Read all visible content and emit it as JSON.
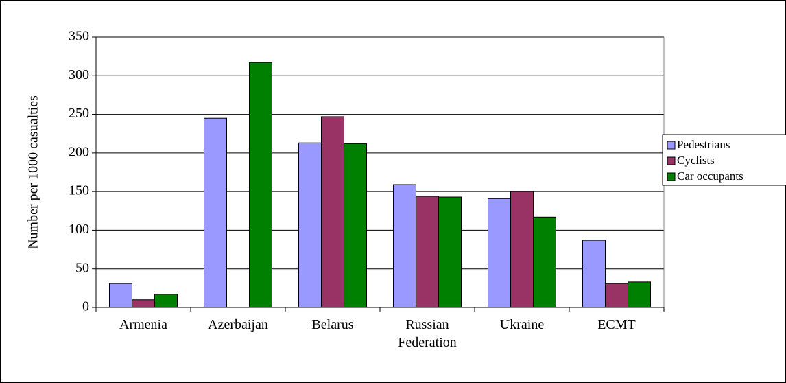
{
  "chart_data": {
    "type": "bar",
    "y_axis_label": "Number per 1000 casualties",
    "categories": [
      "Armenia",
      "Azerbaijan",
      "Belarus",
      "Russian Federation",
      "Ukraine",
      "ECMT"
    ],
    "series": [
      {
        "name": "Pedestrians",
        "color": "#9999ff",
        "values": [
          31,
          245,
          213,
          159,
          141,
          87
        ]
      },
      {
        "name": "Cyclists",
        "color": "#993366",
        "values": [
          10,
          null,
          247,
          144,
          150,
          31
        ]
      },
      {
        "name": "Car occupants",
        "color": "#008000",
        "values": [
          17,
          317,
          212,
          143,
          117,
          33
        ]
      }
    ],
    "ylim": [
      0,
      350
    ],
    "yticks": [
      0,
      50,
      100,
      150,
      200,
      250,
      300,
      350
    ],
    "grid": true,
    "legend": "right"
  }
}
